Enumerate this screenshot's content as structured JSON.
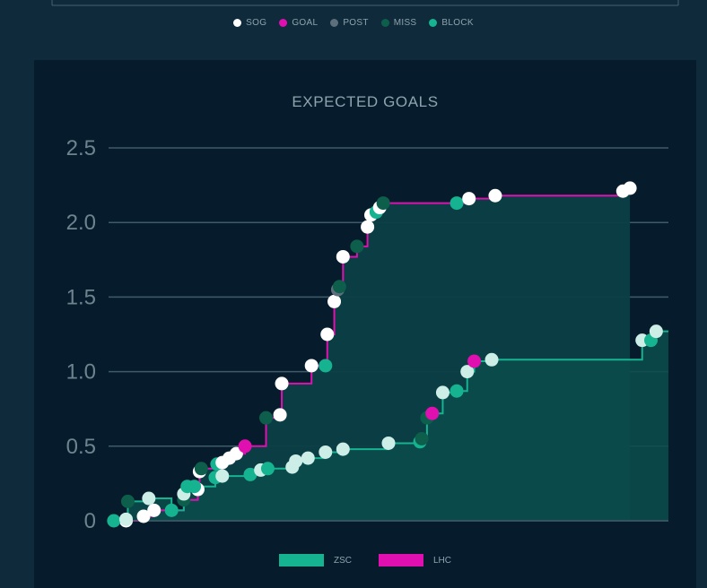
{
  "legend": [
    {
      "label": "SOG",
      "color": "#ffffff"
    },
    {
      "label": "GOAL",
      "color": "#e010b0"
    },
    {
      "label": "POST",
      "color": "#5d6f7b"
    },
    {
      "label": "MISS",
      "color": "#0e5e4c"
    },
    {
      "label": "BLOCK",
      "color": "#16b391"
    }
  ],
  "chart_data": {
    "type": "line",
    "title": "EXPECTED GOALS",
    "xlabel": "",
    "ylabel": "",
    "ylim": [
      0,
      2.5
    ],
    "yticks": [
      "0",
      "0.5",
      "1.0",
      "1.5",
      "2.0",
      "2.5"
    ],
    "grid": true,
    "legend_placement": "bottom",
    "series": [
      {
        "name": "ZSC",
        "color": "#16b391",
        "points": [
          {
            "x": 0.3,
            "y": 0.0,
            "e": "BLOCK"
          },
          {
            "x": 1.0,
            "y": 0.01,
            "e": "SOG"
          },
          {
            "x": 1.1,
            "y": 0.13,
            "e": "MISS"
          },
          {
            "x": 2.3,
            "y": 0.15,
            "e": "SOG"
          },
          {
            "x": 3.6,
            "y": 0.07,
            "e": "BLOCK"
          },
          {
            "x": 4.3,
            "y": 0.18,
            "e": "SOG"
          },
          {
            "x": 4.5,
            "y": 0.23,
            "e": "BLOCK"
          },
          {
            "x": 4.9,
            "y": 0.23,
            "e": "BLOCK"
          },
          {
            "x": 6.1,
            "y": 0.29,
            "e": "BLOCK"
          },
          {
            "x": 6.5,
            "y": 0.3,
            "e": "SOG"
          },
          {
            "x": 8.1,
            "y": 0.31,
            "e": "BLOCK"
          },
          {
            "x": 8.7,
            "y": 0.34,
            "e": "SOG"
          },
          {
            "x": 9.1,
            "y": 0.35,
            "e": "BLOCK"
          },
          {
            "x": 10.5,
            "y": 0.36,
            "e": "SOG"
          },
          {
            "x": 10.7,
            "y": 0.4,
            "e": "SOG"
          },
          {
            "x": 11.4,
            "y": 0.42,
            "e": "SOG"
          },
          {
            "x": 12.4,
            "y": 0.46,
            "e": "SOG"
          },
          {
            "x": 13.4,
            "y": 0.48,
            "e": "SOG"
          },
          {
            "x": 16.0,
            "y": 0.52,
            "e": "SOG"
          },
          {
            "x": 17.8,
            "y": 0.53,
            "e": "BLOCK"
          },
          {
            "x": 17.9,
            "y": 0.55,
            "e": "MISS"
          },
          {
            "x": 18.2,
            "y": 0.69,
            "e": "MISS"
          },
          {
            "x": 18.5,
            "y": 0.72,
            "e": "GOAL"
          },
          {
            "x": 19.1,
            "y": 0.86,
            "e": "SOG"
          },
          {
            "x": 19.9,
            "y": 0.87,
            "e": "BLOCK"
          },
          {
            "x": 20.5,
            "y": 1.0,
            "e": "SOG"
          },
          {
            "x": 20.9,
            "y": 1.07,
            "e": "GOAL"
          },
          {
            "x": 21.9,
            "y": 1.08,
            "e": "SOG"
          },
          {
            "x": 30.5,
            "y": 1.21,
            "e": "SOG"
          },
          {
            "x": 31.0,
            "y": 1.21,
            "e": "BLOCK"
          },
          {
            "x": 31.3,
            "y": 1.27,
            "e": "SOG"
          }
        ]
      },
      {
        "name": "LHC",
        "color": "#e010b0",
        "points": [
          {
            "x": 1.0,
            "y": 0.0,
            "e": "SOG"
          },
          {
            "x": 2.0,
            "y": 0.03,
            "e": "SOG"
          },
          {
            "x": 2.6,
            "y": 0.07,
            "e": "SOG"
          },
          {
            "x": 4.3,
            "y": 0.14,
            "e": "MISS"
          },
          {
            "x": 5.1,
            "y": 0.21,
            "e": "SOG"
          },
          {
            "x": 5.2,
            "y": 0.33,
            "e": "SOG"
          },
          {
            "x": 5.3,
            "y": 0.35,
            "e": "MISS"
          },
          {
            "x": 6.2,
            "y": 0.38,
            "e": "BLOCK"
          },
          {
            "x": 6.5,
            "y": 0.39,
            "e": "SOG"
          },
          {
            "x": 6.9,
            "y": 0.42,
            "e": "SOG"
          },
          {
            "x": 7.3,
            "y": 0.45,
            "e": "SOG"
          },
          {
            "x": 7.8,
            "y": 0.5,
            "e": "GOAL"
          },
          {
            "x": 9.0,
            "y": 0.69,
            "e": "MISS"
          },
          {
            "x": 9.8,
            "y": 0.71,
            "e": "SOG"
          },
          {
            "x": 9.9,
            "y": 0.92,
            "e": "SOG"
          },
          {
            "x": 11.6,
            "y": 1.04,
            "e": "SOG"
          },
          {
            "x": 12.4,
            "y": 1.04,
            "e": "BLOCK"
          },
          {
            "x": 12.5,
            "y": 1.25,
            "e": "SOG"
          },
          {
            "x": 12.9,
            "y": 1.47,
            "e": "SOG"
          },
          {
            "x": 13.1,
            "y": 1.55,
            "e": "POST"
          },
          {
            "x": 13.2,
            "y": 1.57,
            "e": "MISS"
          },
          {
            "x": 13.4,
            "y": 1.77,
            "e": "SOG"
          },
          {
            "x": 14.2,
            "y": 1.84,
            "e": "MISS"
          },
          {
            "x": 14.8,
            "y": 1.97,
            "e": "SOG"
          },
          {
            "x": 15.0,
            "y": 2.05,
            "e": "SOG"
          },
          {
            "x": 15.3,
            "y": 2.07,
            "e": "BLOCK"
          },
          {
            "x": 15.5,
            "y": 2.1,
            "e": "SOG"
          },
          {
            "x": 15.7,
            "y": 2.13,
            "e": "MISS"
          },
          {
            "x": 19.9,
            "y": 2.13,
            "e": "BLOCK"
          },
          {
            "x": 20.6,
            "y": 2.16,
            "e": "SOG"
          },
          {
            "x": 22.1,
            "y": 2.18,
            "e": "SOG"
          },
          {
            "x": 29.4,
            "y": 2.21,
            "e": "SOG"
          },
          {
            "x": 29.8,
            "y": 2.23,
            "e": "SOG"
          }
        ]
      }
    ]
  },
  "legend_bottom": [
    {
      "label": "ZSC",
      "color": "#16b391"
    },
    {
      "label": "LHC",
      "color": "#e010b0"
    }
  ]
}
